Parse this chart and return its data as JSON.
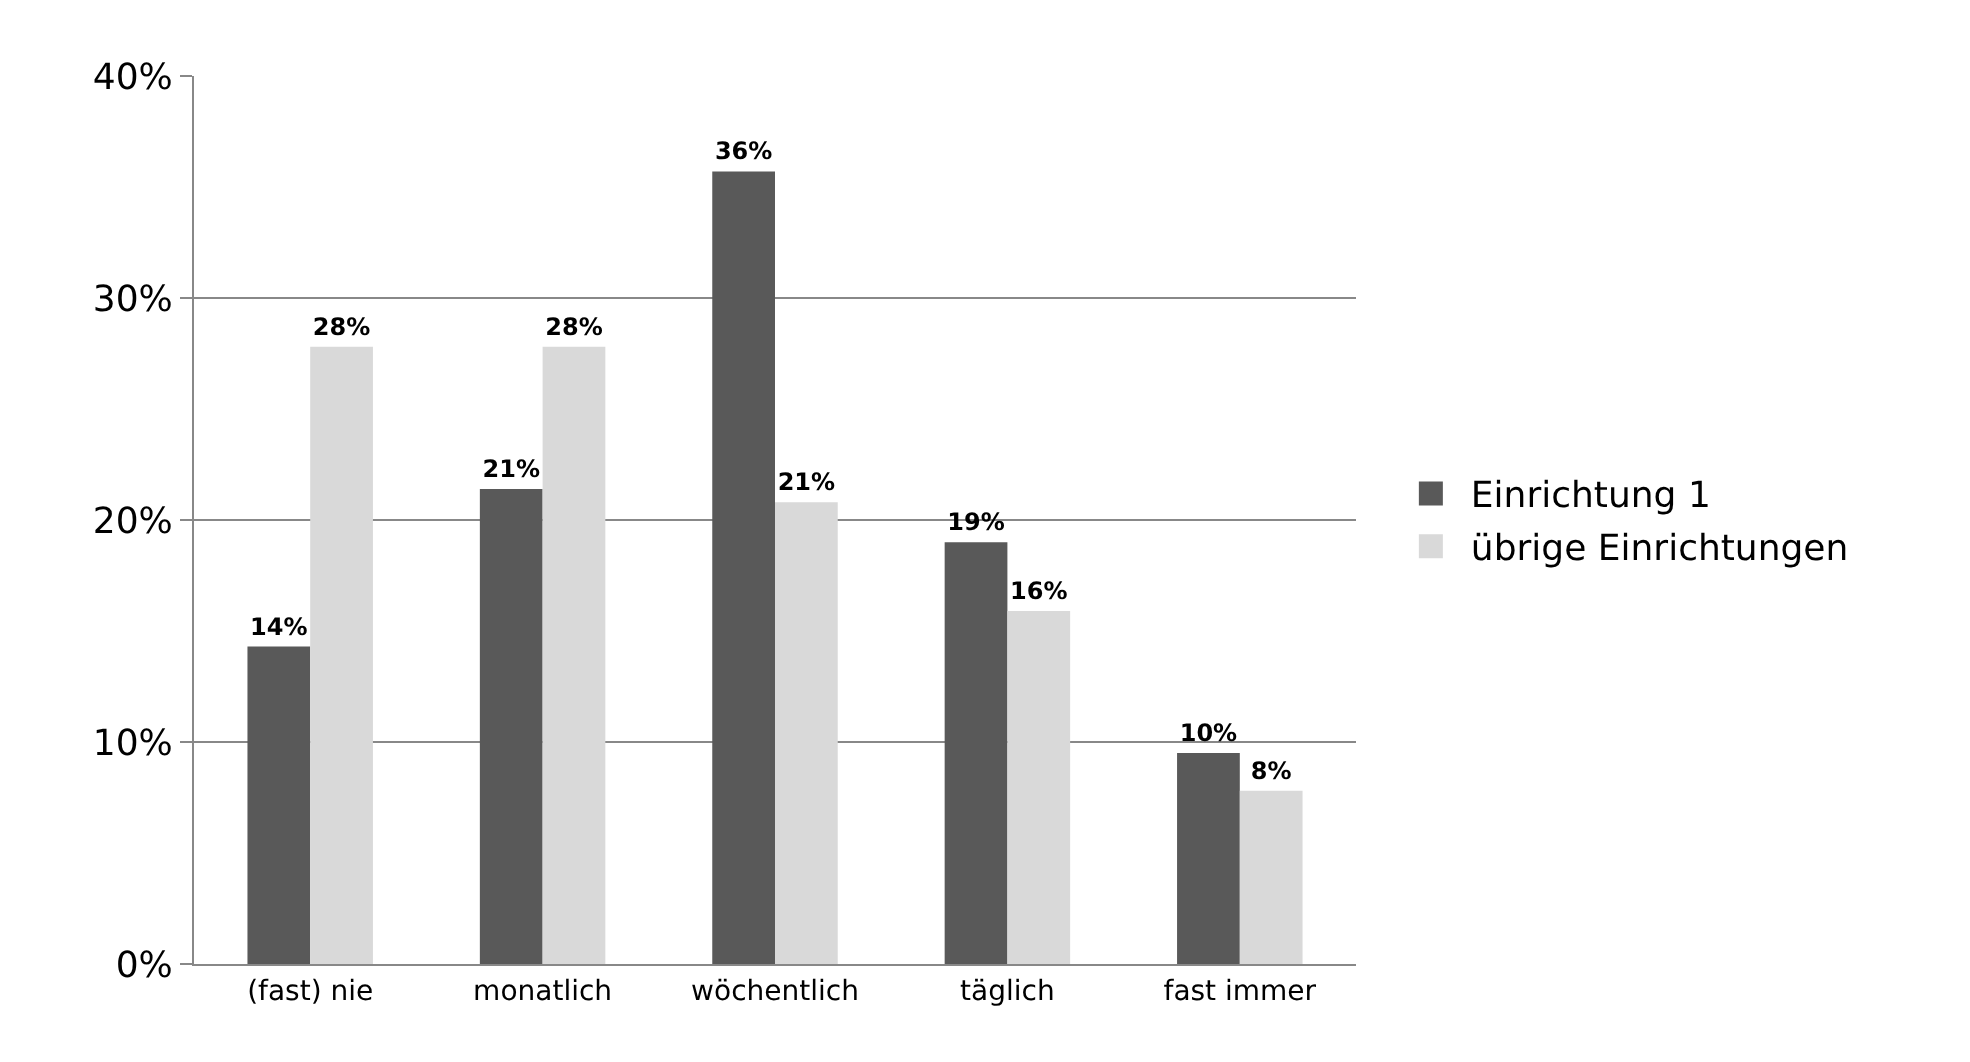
{
  "chart_data": {
    "type": "bar",
    "categories": [
      "(fast) nie",
      "monatlich",
      "wöchentlich",
      "täglich",
      "fast immer"
    ],
    "series": [
      {
        "name": "Einrichtung 1",
        "color": "#595959",
        "values": [
          14.3,
          21.4,
          35.7,
          19.0,
          9.5
        ],
        "value_labels": [
          "14%",
          "21%",
          "36%",
          "19%",
          "10%"
        ]
      },
      {
        "name": "übrige Einrichtungen",
        "color": "#d9d9d9",
        "values": [
          27.8,
          27.8,
          20.8,
          15.9,
          7.8
        ],
        "value_labels": [
          "28%",
          "28%",
          "21%",
          "16%",
          "8%"
        ]
      }
    ],
    "ylim": [
      0,
      40
    ],
    "yticks": [
      {
        "value": 0,
        "label": "0%"
      },
      {
        "value": 10,
        "label": "10%"
      },
      {
        "value": 20,
        "label": "20%"
      },
      {
        "value": 30,
        "label": "30%"
      },
      {
        "value": 40,
        "label": "40%"
      }
    ],
    "grid": "y",
    "legend": "right"
  }
}
